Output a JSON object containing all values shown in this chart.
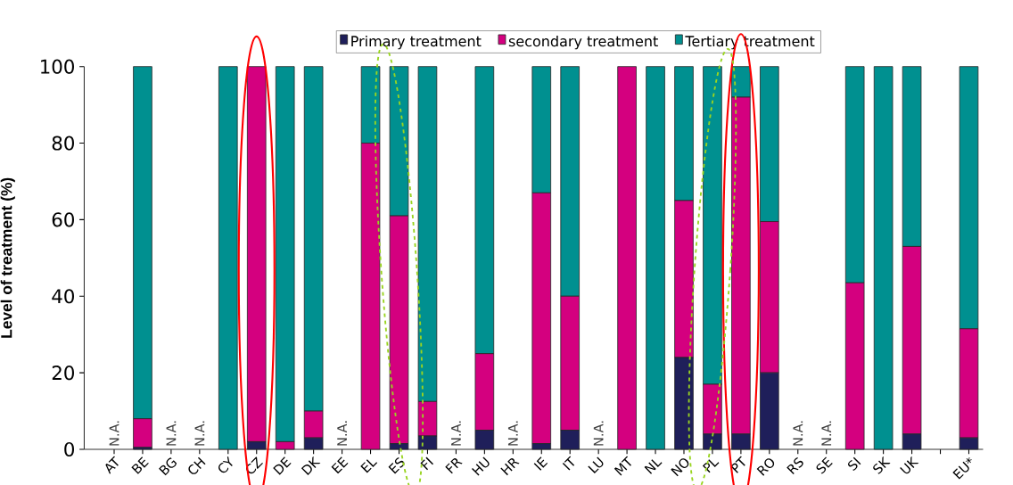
{
  "chart_data": {
    "type": "bar",
    "stacked": true,
    "ylabel": "Level of treatment (%)",
    "categories": [
      "AT",
      "BE",
      "BG",
      "CH",
      "CY",
      "CZ",
      "DE",
      "DK",
      "EE",
      "EL",
      "ES",
      "FI",
      "FR",
      "HU",
      "HR",
      "IE",
      "IT",
      "LU",
      "MT",
      "NL",
      "NO",
      "PL",
      "PT",
      "RO",
      "RS",
      "SE",
      "SI",
      "SK",
      "UK",
      null,
      "EU*"
    ],
    "series": [
      {
        "name": "Primary treatment",
        "color": "#1f1f5a",
        "values": [
          null,
          0.5,
          null,
          null,
          0,
          2,
          0,
          3,
          null,
          0,
          1.5,
          3.5,
          null,
          5,
          null,
          1.5,
          5,
          null,
          0,
          0,
          24,
          4,
          4,
          20,
          null,
          null,
          0,
          0,
          4,
          null,
          3
        ]
      },
      {
        "name": "secondary treatment",
        "color": "#d4007f",
        "values": [
          null,
          7.5,
          null,
          null,
          0,
          98,
          2,
          7,
          null,
          80,
          59.5,
          9,
          null,
          20,
          null,
          65.5,
          35,
          null,
          100,
          0,
          41,
          13,
          88,
          39.5,
          null,
          null,
          43.5,
          0,
          49,
          null,
          28.5
        ]
      },
      {
        "name": "Tertiary treatment",
        "color": "#009090",
        "values": [
          null,
          92,
          null,
          null,
          100,
          0,
          98,
          90,
          null,
          20,
          39,
          87.5,
          null,
          75,
          null,
          33,
          60,
          null,
          0,
          100,
          35,
          83,
          8,
          40.5,
          null,
          null,
          56.5,
          100,
          47,
          null,
          68.5
        ]
      }
    ],
    "ylim": [
      0,
      100
    ],
    "yticks": [
      0,
      20,
      40,
      60,
      80,
      100
    ],
    "legend": "top",
    "annotations": [
      "N.A.",
      "N.A.",
      "N.A.",
      "N.A.",
      "N.A.",
      "N.A.",
      "N.A.",
      "N.A.",
      "N.A."
    ]
  }
}
